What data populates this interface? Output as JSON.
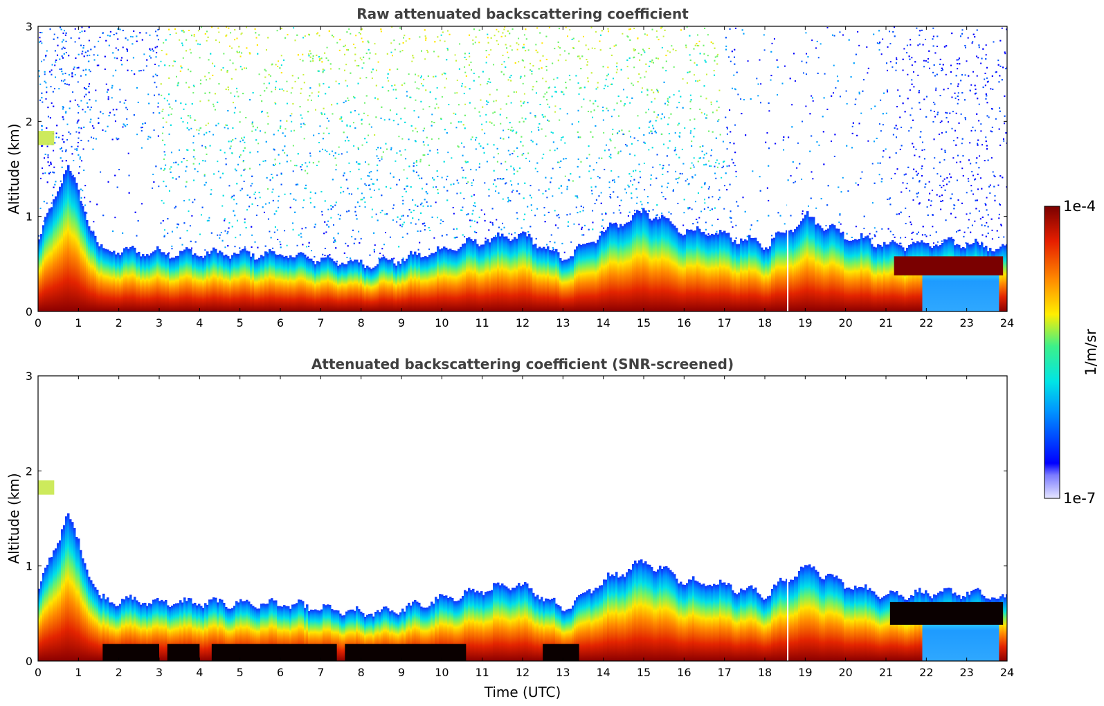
{
  "chart_data": [
    {
      "type": "heatmap",
      "title": "Raw attenuated backscattering coefficient",
      "xlabel": "",
      "ylabel": "Altitude (km)",
      "xlim": [
        0,
        24
      ],
      "ylim": [
        0,
        3
      ],
      "x_ticks": [
        "0",
        "1",
        "2",
        "3",
        "4",
        "5",
        "6",
        "7",
        "8",
        "9",
        "10",
        "11",
        "12",
        "13",
        "14",
        "15",
        "16",
        "17",
        "18",
        "19",
        "20",
        "21",
        "22",
        "23",
        "24"
      ],
      "y_ticks": [
        "0",
        "1",
        "2",
        "3"
      ],
      "grid": false,
      "data_summary": {
        "boundary_layer_top_km": [
          [
            0,
            0.75
          ],
          [
            0.7,
            1.55
          ],
          [
            1.5,
            0.65
          ],
          [
            3,
            0.62
          ],
          [
            6,
            0.6
          ],
          [
            8,
            0.5
          ],
          [
            9,
            0.55
          ],
          [
            11,
            0.75
          ],
          [
            12,
            0.8
          ],
          [
            13,
            0.55
          ],
          [
            14,
            0.85
          ],
          [
            15,
            1.05
          ],
          [
            16,
            0.85
          ],
          [
            17,
            0.8
          ],
          [
            18,
            0.7
          ],
          [
            19,
            1.0
          ],
          [
            20,
            0.8
          ],
          [
            21,
            0.7
          ],
          [
            23,
            0.72
          ],
          [
            24,
            0.65
          ]
        ],
        "elevated_layer_km": [
          [
            0,
            1.75
          ],
          [
            0.4,
            1.9
          ]
        ],
        "low_signal_region": {
          "x": [
            21.9,
            23.8
          ],
          "y": [
            0,
            0.4
          ]
        }
      }
    },
    {
      "type": "heatmap",
      "title": "Attenuated backscattering coefficient (SNR-screened)",
      "xlabel": "Time (UTC)",
      "ylabel": "Altitude (km)",
      "xlim": [
        0,
        24
      ],
      "ylim": [
        0,
        3
      ],
      "x_ticks": [
        "0",
        "1",
        "2",
        "3",
        "4",
        "5",
        "6",
        "7",
        "8",
        "9",
        "10",
        "11",
        "12",
        "13",
        "14",
        "15",
        "16",
        "17",
        "18",
        "19",
        "20",
        "21",
        "22",
        "23",
        "24"
      ],
      "y_ticks": [
        "0",
        "1",
        "2",
        "3"
      ],
      "grid": false,
      "data_summary": {
        "saturated_bands_utc": [
          [
            1.6,
            3.0
          ],
          [
            3.2,
            4.0
          ],
          [
            4.3,
            7.4
          ],
          [
            7.6,
            10.6
          ],
          [
            12.5,
            13.4
          ]
        ],
        "saturated_layer_km": [
          21.1,
          23.9
        ]
      }
    }
  ],
  "colorbar": {
    "label": "1/m/sr",
    "max_label": "1e-4",
    "min_label": "1e-7",
    "scale": "log",
    "colormap": "jet"
  }
}
